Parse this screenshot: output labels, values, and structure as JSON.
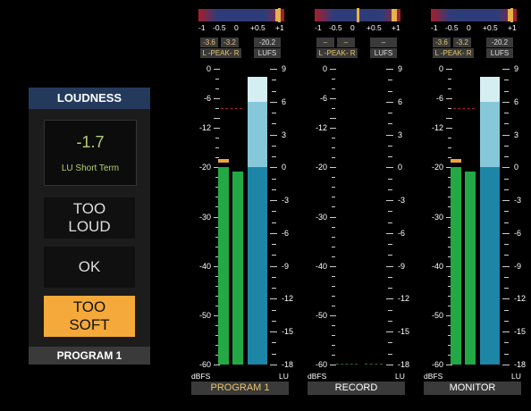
{
  "loudness_panel": {
    "title": "LOUDNESS",
    "reading_value": "-1.7",
    "reading_label": "LU Short Term",
    "btn_too_loud": "TOO\nLOUD",
    "btn_ok": "OK",
    "btn_too_soft": "TOO\nSOFT",
    "footer": "PROGRAM 1"
  },
  "phase_scale": [
    "-1",
    "-0.5",
    "0",
    "+0.5",
    "+1"
  ],
  "dbfs_ticks": [
    "0",
    "-6",
    "-12",
    "-20",
    "-30",
    "-40",
    "-50",
    "-60"
  ],
  "lu_ticks": [
    "9",
    "6",
    "3",
    "0",
    "-3",
    "-6",
    "-9",
    "-12",
    "-15",
    "-18"
  ],
  "units": {
    "left": "dBFS",
    "right": "LU"
  },
  "labels": {
    "peak": "L -PEAK- R",
    "lufs": "LUFS"
  },
  "meters": [
    {
      "name": "PROGRAM 1",
      "name_color": "#e6c46a",
      "peak_l": "-3.6",
      "peak_r": "-3.2",
      "lufs": "-20.2",
      "phase": 0.95,
      "left_dbfs": -20,
      "right_dbfs": -20.8,
      "left_peak_hold": -19.3,
      "left_max_line": -8,
      "lu_upper": 6,
      "lu_lower": 0,
      "active": true
    },
    {
      "name": "RECORD",
      "name_color": "#ffffff",
      "peak_l": "–",
      "peak_r": "–",
      "lufs": "–",
      "phase": 0.5,
      "active": false
    },
    {
      "name": "MONITOR",
      "name_color": "#ffffff",
      "peak_l": "-3.6",
      "peak_r": "-3.2",
      "lufs": "-20.2",
      "phase": 0.95,
      "left_dbfs": -20,
      "right_dbfs": -20.8,
      "left_peak_hold": -19.3,
      "left_max_line": -8,
      "lu_upper": 6,
      "lu_lower": 0,
      "active": true
    }
  ]
}
